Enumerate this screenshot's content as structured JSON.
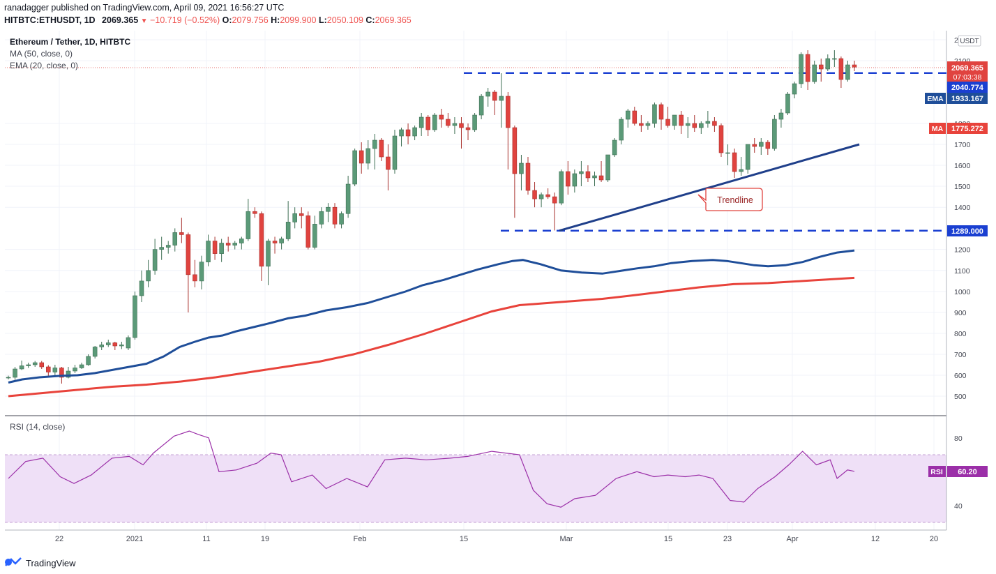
{
  "header": {
    "publisher": "ranadagger published on TradingView.com, April 09, 2021 16:56:27 UTC",
    "symbol": "HITBTC:ETHUSDT, 1D",
    "last": "2069.365",
    "change_arrow": "▼",
    "change": "−10.719 (−0.52%)",
    "o_label": "O:",
    "o_value": "2079.756",
    "h_label": "H:",
    "h_value": "2099.900",
    "l_label": "L:",
    "l_value": "2050.109",
    "c_label": "C:",
    "c_value": "2069.365"
  },
  "legend": {
    "title": "Ethereum / Tether, 1D, HITBTC",
    "ma": "MA (50, close, 0)",
    "ema": "EMA (20, close, 0)",
    "rsi": "RSI (14, close)"
  },
  "axis": {
    "currency": "USDT",
    "price_ticks": [
      "2200",
      "2100",
      "1800",
      "1700",
      "1600",
      "1500",
      "1400",
      "1200",
      "1100",
      "1000",
      "900",
      "800",
      "700",
      "600",
      "500"
    ],
    "rsi_ticks": [
      "80",
      "40"
    ],
    "x_ticks": [
      "22",
      "2021",
      "11",
      "19",
      "Feb",
      "15",
      "Mar",
      "15",
      "23",
      "Apr",
      "12",
      "20"
    ]
  },
  "labels": {
    "last_price": "2069.365",
    "countdown": "07:03:38",
    "resistance": "2040.774",
    "ema_tag": "EMA",
    "ema_value": "1933.167",
    "ma_tag": "MA",
    "ma_value": "1775.272",
    "support": "1289.000",
    "rsi_tag": "RSI",
    "rsi_value": "60.20",
    "trendline": "Trendline"
  },
  "footer": {
    "brand": "TradingView"
  },
  "colors": {
    "up": "#5b9a78",
    "down": "#e0433f",
    "ema": "#1f4e99",
    "ma": "#e8433b",
    "level": "#1a3fd1",
    "trend": "#1f3f8a",
    "rsi": "#9b2fa8",
    "rsi_band": "#efe0f7"
  },
  "chart_data": {
    "type": "candlestick",
    "title": "Ethereum / Tether, 1D, HITBTC",
    "y_range": [
      450,
      2200
    ],
    "ohlc": [
      [
        587,
        598,
        580,
        590
      ],
      [
        590,
        640,
        578,
        630
      ],
      [
        630,
        670,
        625,
        645
      ],
      [
        645,
        660,
        635,
        650
      ],
      [
        650,
        668,
        640,
        660
      ],
      [
        660,
        668,
        630,
        640
      ],
      [
        640,
        648,
        595,
        615
      ],
      [
        615,
        650,
        600,
        635
      ],
      [
        635,
        640,
        560,
        590
      ],
      [
        590,
        640,
        585,
        620
      ],
      [
        620,
        650,
        610,
        635
      ],
      [
        635,
        660,
        630,
        650
      ],
      [
        650,
        700,
        645,
        690
      ],
      [
        690,
        740,
        680,
        735
      ],
      [
        735,
        760,
        720,
        745
      ],
      [
        745,
        770,
        735,
        755
      ],
      [
        755,
        760,
        720,
        740
      ],
      [
        740,
        760,
        725,
        745
      ],
      [
        730,
        790,
        720,
        780
      ],
      [
        780,
        1000,
        770,
        980
      ],
      [
        980,
        1100,
        950,
        1050
      ],
      [
        1050,
        1150,
        1020,
        1100
      ],
      [
        1100,
        1250,
        1080,
        1200
      ],
      [
        1200,
        1260,
        1150,
        1210
      ],
      [
        1210,
        1240,
        1180,
        1220
      ],
      [
        1220,
        1300,
        1190,
        1280
      ],
      [
        1280,
        1350,
        1230,
        1270
      ],
      [
        1270,
        1280,
        900,
        1080
      ],
      [
        1080,
        1150,
        1020,
        1050
      ],
      [
        1050,
        1170,
        1010,
        1140
      ],
      [
        1140,
        1270,
        1120,
        1240
      ],
      [
        1240,
        1260,
        1150,
        1180
      ],
      [
        1180,
        1250,
        1140,
        1230
      ],
      [
        1230,
        1260,
        1190,
        1220
      ],
      [
        1220,
        1240,
        1200,
        1230
      ],
      [
        1230,
        1260,
        1200,
        1250
      ],
      [
        1250,
        1440,
        1240,
        1380
      ],
      [
        1380,
        1400,
        1350,
        1370
      ],
      [
        1370,
        1380,
        1050,
        1120
      ],
      [
        1120,
        1250,
        1030,
        1240
      ],
      [
        1240,
        1260,
        1180,
        1230
      ],
      [
        1230,
        1260,
        1200,
        1250
      ],
      [
        1250,
        1430,
        1240,
        1330
      ],
      [
        1330,
        1400,
        1300,
        1370
      ],
      [
        1370,
        1400,
        1300,
        1360
      ],
      [
        1360,
        1380,
        1200,
        1210
      ],
      [
        1210,
        1360,
        1200,
        1320
      ],
      [
        1320,
        1400,
        1300,
        1380
      ],
      [
        1380,
        1420,
        1330,
        1400
      ],
      [
        1400,
        1420,
        1300,
        1320
      ],
      [
        1320,
        1380,
        1300,
        1370
      ],
      [
        1370,
        1550,
        1350,
        1510
      ],
      [
        1510,
        1680,
        1500,
        1670
      ],
      [
        1670,
        1710,
        1560,
        1610
      ],
      [
        1610,
        1720,
        1580,
        1680
      ],
      [
        1680,
        1750,
        1580,
        1720
      ],
      [
        1720,
        1730,
        1620,
        1640
      ],
      [
        1640,
        1700,
        1480,
        1580
      ],
      [
        1580,
        1770,
        1560,
        1740
      ],
      [
        1740,
        1780,
        1690,
        1770
      ],
      [
        1770,
        1800,
        1700,
        1740
      ],
      [
        1740,
        1790,
        1720,
        1780
      ],
      [
        1780,
        1850,
        1740,
        1830
      ],
      [
        1830,
        1840,
        1740,
        1770
      ],
      [
        1770,
        1850,
        1760,
        1840
      ],
      [
        1840,
        1870,
        1780,
        1820
      ],
      [
        1820,
        1850,
        1780,
        1790
      ],
      [
        1790,
        1830,
        1750,
        1800
      ],
      [
        1800,
        1830,
        1680,
        1780
      ],
      [
        1780,
        1800,
        1720,
        1770
      ],
      [
        1770,
        1850,
        1760,
        1840
      ],
      [
        1840,
        1940,
        1820,
        1930
      ],
      [
        1930,
        1970,
        1880,
        1950
      ],
      [
        1950,
        1960,
        1840,
        1910
      ],
      [
        1910,
        2040,
        1780,
        1930
      ],
      [
        1930,
        1950,
        1580,
        1780
      ],
      [
        1780,
        1790,
        1350,
        1560
      ],
      [
        1560,
        1650,
        1480,
        1610
      ],
      [
        1610,
        1640,
        1460,
        1480
      ],
      [
        1480,
        1520,
        1400,
        1440
      ],
      [
        1440,
        1470,
        1400,
        1460
      ],
      [
        1460,
        1490,
        1440,
        1450
      ],
      [
        1450,
        1470,
        1290,
        1420
      ],
      [
        1420,
        1580,
        1410,
        1570
      ],
      [
        1570,
        1620,
        1460,
        1500
      ],
      [
        1500,
        1580,
        1470,
        1560
      ],
      [
        1560,
        1620,
        1500,
        1570
      ],
      [
        1570,
        1600,
        1520,
        1540
      ],
      [
        1540,
        1570,
        1500,
        1550
      ],
      [
        1550,
        1620,
        1520,
        1530
      ],
      [
        1530,
        1650,
        1520,
        1650
      ],
      [
        1650,
        1730,
        1640,
        1720
      ],
      [
        1720,
        1830,
        1700,
        1820
      ],
      [
        1820,
        1870,
        1780,
        1860
      ],
      [
        1860,
        1880,
        1790,
        1800
      ],
      [
        1800,
        1840,
        1760,
        1790
      ],
      [
        1790,
        1810,
        1770,
        1800
      ],
      [
        1800,
        1900,
        1780,
        1890
      ],
      [
        1890,
        1900,
        1770,
        1820
      ],
      [
        1820,
        1880,
        1780,
        1790
      ],
      [
        1790,
        1840,
        1770,
        1840
      ],
      [
        1840,
        1860,
        1750,
        1790
      ],
      [
        1790,
        1830,
        1730,
        1800
      ],
      [
        1800,
        1840,
        1760,
        1780
      ],
      [
        1780,
        1810,
        1750,
        1800
      ],
      [
        1800,
        1860,
        1780,
        1810
      ],
      [
        1810,
        1830,
        1760,
        1790
      ],
      [
        1790,
        1800,
        1640,
        1660
      ],
      [
        1660,
        1700,
        1600,
        1660
      ],
      [
        1660,
        1680,
        1540,
        1570
      ],
      [
        1570,
        1640,
        1550,
        1580
      ],
      [
        1580,
        1700,
        1560,
        1700
      ],
      [
        1700,
        1730,
        1660,
        1690
      ],
      [
        1690,
        1730,
        1650,
        1710
      ],
      [
        1710,
        1720,
        1650,
        1680
      ],
      [
        1680,
        1840,
        1670,
        1820
      ],
      [
        1820,
        1870,
        1780,
        1850
      ],
      [
        1850,
        1950,
        1840,
        1940
      ],
      [
        1940,
        2000,
        1920,
        1990
      ],
      [
        1990,
        2140,
        1970,
        2130
      ],
      [
        2130,
        2150,
        1960,
        2000
      ],
      [
        2000,
        2100,
        1990,
        2080
      ],
      [
        2080,
        2110,
        2000,
        2060
      ],
      [
        2060,
        2130,
        2050,
        2110
      ],
      [
        2110,
        2150,
        2070,
        2110
      ],
      [
        2110,
        2120,
        1970,
        2010
      ],
      [
        2010,
        2100,
        2000,
        2080
      ],
      [
        2080,
        2099.9,
        2050.1,
        2069.365
      ]
    ],
    "ema20": [
      [
        0,
        565
      ],
      [
        20,
        580
      ],
      [
        45,
        590
      ],
      [
        75,
        597
      ],
      [
        100,
        600
      ],
      [
        125,
        610
      ],
      [
        150,
        625
      ],
      [
        175,
        640
      ],
      [
        200,
        655
      ],
      [
        225,
        690
      ],
      [
        248,
        735
      ],
      [
        270,
        760
      ],
      [
        290,
        780
      ],
      [
        310,
        790
      ],
      [
        330,
        810
      ],
      [
        355,
        830
      ],
      [
        380,
        850
      ],
      [
        405,
        872
      ],
      [
        430,
        885
      ],
      [
        460,
        910
      ],
      [
        490,
        925
      ],
      [
        520,
        945
      ],
      [
        550,
        975
      ],
      [
        575,
        1000
      ],
      [
        600,
        1030
      ],
      [
        630,
        1055
      ],
      [
        655,
        1080
      ],
      [
        680,
        1105
      ],
      [
        710,
        1130
      ],
      [
        730,
        1145
      ],
      [
        745,
        1150
      ],
      [
        770,
        1130
      ],
      [
        800,
        1100
      ],
      [
        830,
        1090
      ],
      [
        860,
        1085
      ],
      [
        880,
        1095
      ],
      [
        910,
        1110
      ],
      [
        935,
        1120
      ],
      [
        960,
        1135
      ],
      [
        990,
        1145
      ],
      [
        1020,
        1150
      ],
      [
        1040,
        1145
      ],
      [
        1060,
        1135
      ],
      [
        1080,
        1125
      ],
      [
        1100,
        1120
      ],
      [
        1125,
        1125
      ],
      [
        1150,
        1140
      ],
      [
        1175,
        1165
      ],
      [
        1200,
        1185
      ],
      [
        1225,
        1195
      ]
    ],
    "ma50": [
      [
        0,
        500
      ],
      [
        50,
        515
      ],
      [
        100,
        530
      ],
      [
        150,
        545
      ],
      [
        200,
        555
      ],
      [
        250,
        570
      ],
      [
        300,
        590
      ],
      [
        350,
        615
      ],
      [
        400,
        640
      ],
      [
        450,
        665
      ],
      [
        500,
        700
      ],
      [
        550,
        745
      ],
      [
        600,
        795
      ],
      [
        650,
        850
      ],
      [
        700,
        905
      ],
      [
        740,
        935
      ],
      [
        780,
        945
      ],
      [
        820,
        955
      ],
      [
        860,
        965
      ],
      [
        900,
        980
      ],
      [
        950,
        1000
      ],
      [
        1000,
        1020
      ],
      [
        1050,
        1035
      ],
      [
        1100,
        1040
      ],
      [
        1150,
        1050
      ],
      [
        1200,
        1060
      ],
      [
        1225,
        1065
      ]
    ],
    "rsi14": [
      [
        0,
        56
      ],
      [
        25,
        66
      ],
      [
        50,
        68
      ],
      [
        75,
        57
      ],
      [
        95,
        53
      ],
      [
        120,
        58
      ],
      [
        150,
        68
      ],
      [
        175,
        69
      ],
      [
        195,
        64
      ],
      [
        210,
        71
      ],
      [
        240,
        81
      ],
      [
        262,
        84
      ],
      [
        275,
        82
      ],
      [
        290,
        80
      ],
      [
        305,
        60
      ],
      [
        330,
        61
      ],
      [
        360,
        65
      ],
      [
        380,
        71
      ],
      [
        395,
        70
      ],
      [
        410,
        54
      ],
      [
        440,
        58
      ],
      [
        460,
        50
      ],
      [
        490,
        56
      ],
      [
        520,
        51
      ],
      [
        545,
        67
      ],
      [
        575,
        68
      ],
      [
        605,
        67
      ],
      [
        640,
        68
      ],
      [
        665,
        69
      ],
      [
        700,
        72
      ],
      [
        720,
        71
      ],
      [
        740,
        70
      ],
      [
        760,
        49
      ],
      [
        780,
        41
      ],
      [
        800,
        39
      ],
      [
        820,
        44
      ],
      [
        850,
        46
      ],
      [
        880,
        56
      ],
      [
        910,
        60
      ],
      [
        935,
        57
      ],
      [
        955,
        58
      ],
      [
        980,
        57
      ],
      [
        1000,
        58
      ],
      [
        1020,
        56
      ],
      [
        1045,
        43
      ],
      [
        1065,
        42
      ],
      [
        1085,
        50
      ],
      [
        1110,
        57
      ],
      [
        1130,
        64
      ],
      [
        1150,
        72
      ],
      [
        1170,
        64
      ],
      [
        1190,
        67
      ],
      [
        1200,
        56
      ],
      [
        1215,
        61
      ],
      [
        1225,
        60.2
      ]
    ],
    "levels": {
      "resistance": 2040.774,
      "support": 1289.0
    },
    "trendline": {
      "from": 1289,
      "to": 1700
    }
  }
}
